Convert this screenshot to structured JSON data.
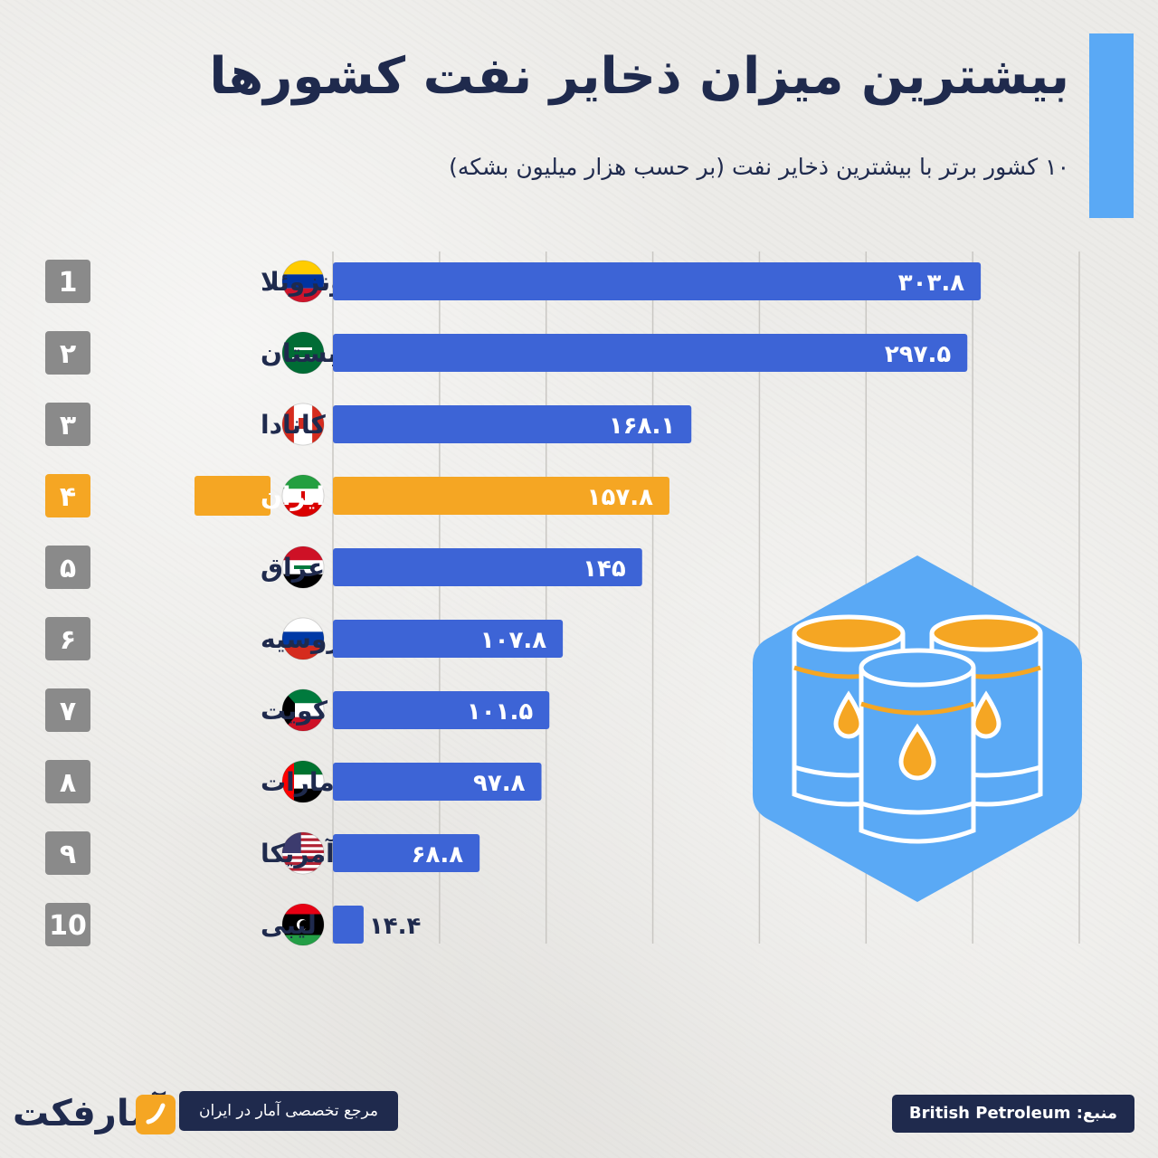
{
  "title": "بیشترین میزان ذخایر نفت کشورها",
  "subtitle": "۱۰ کشور برتر با بیشترین ذخایر نفت (بر حسب هزار میلیون بشکه)",
  "colors": {
    "bar": "#3d64d6",
    "highlight": "#f5a623",
    "rank_box": "#8a8a8a",
    "accent": "#5aa9f5",
    "hex": "#5aa9f5",
    "text_dark": "#1f2a4d"
  },
  "chart_data": {
    "type": "bar",
    "orientation": "horizontal",
    "categories": [
      "ونزوئلا",
      "عربستان",
      "کانادا",
      "ایران",
      "عراق",
      "روسیه",
      "کویت",
      "امارات",
      "آمریکا",
      "لیبی"
    ],
    "values": [
      303.8,
      297.5,
      168.1,
      157.8,
      145,
      107.8,
      101.5,
      97.8,
      68.8,
      14.4
    ],
    "value_labels": [
      "۳۰۳.۸",
      "۲۹۷.۵",
      "۱۶۸.۱",
      "۱۵۷.۸",
      "۱۴۵",
      "۱۰۷.۸",
      "۱۰۱.۵",
      "۹۷.۸",
      "۶۸.۸",
      "۱۴.۴"
    ],
    "ranks": [
      "1",
      "۲",
      "۳",
      "۴",
      "۵",
      "۶",
      "۷",
      "۸",
      "۹",
      "10"
    ],
    "highlight_index": 3,
    "flags": [
      "venezuela-flag",
      "saudi-flag",
      "canada-flag",
      "iran-flag",
      "iraq-flag",
      "russia-flag",
      "kuwait-flag",
      "uae-flag",
      "usa-flag",
      "libya-flag"
    ],
    "xlim": [
      0,
      350
    ],
    "grid": true
  },
  "illustration": "oil-barrels-icon",
  "footer": {
    "logo_text": "آمارفکت",
    "tagline": "مرجع تخصصی آمار در ایران",
    "source": "منبع: British Petroleum"
  }
}
